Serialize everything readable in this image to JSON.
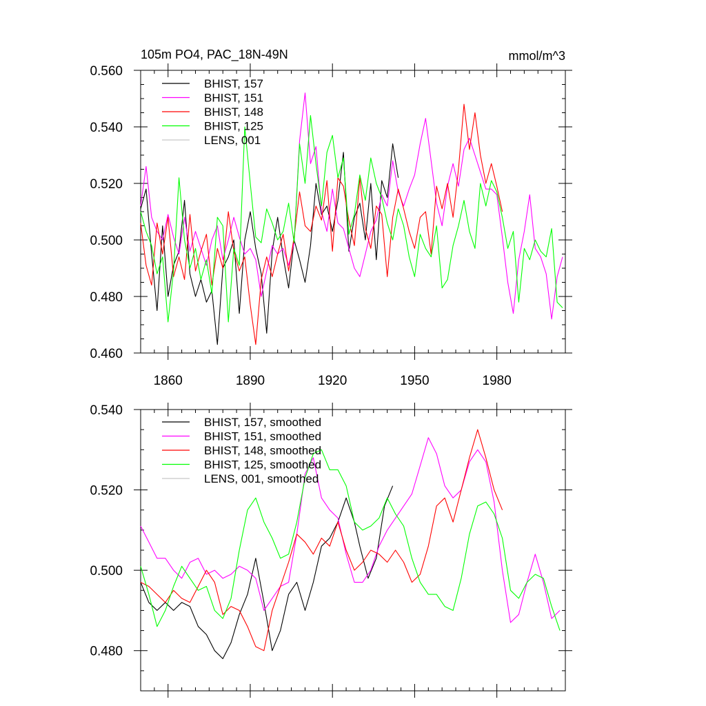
{
  "figure": {
    "title_left": "105m PO4, PAC_18N-49N",
    "title_right": "mmol/m^3"
  },
  "colors": {
    "BHIST_157": "#000000",
    "BHIST_151": "#ff00ff",
    "BHIST_148": "#ff0000",
    "BHIST_125": "#00ff00",
    "LENS_001": "#c8c8c8"
  },
  "chart_data": [
    {
      "type": "line",
      "title": "105m PO4, PAC_18N-49N",
      "units": "mmol/m^3",
      "xlim": [
        1850,
        2005
      ],
      "ylim": [
        0.46,
        0.56
      ],
      "x_ticks": [
        1860,
        1890,
        1920,
        1950,
        1980
      ],
      "x_tick_labels": [
        "1860",
        "1890",
        "1920",
        "1950",
        "1980"
      ],
      "y_ticks": [
        0.46,
        0.48,
        0.5,
        0.52,
        0.54,
        0.56
      ],
      "y_tick_labels": [
        "0.460",
        "0.480",
        "0.500",
        "0.520",
        "0.540",
        "0.560"
      ],
      "legend": [
        "BHIST, 157",
        "BHIST, 151",
        "BHIST, 148",
        "BHIST, 125",
        "LENS, 001"
      ],
      "series": [
        {
          "name": "BHIST, 157",
          "color": "#000000",
          "x": [
            1850,
            1852,
            1854,
            1856,
            1858,
            1860,
            1862,
            1864,
            1866,
            1868,
            1870,
            1872,
            1874,
            1876,
            1878,
            1880,
            1882,
            1884,
            1886,
            1888,
            1890,
            1892,
            1894,
            1896,
            1898,
            1900,
            1902,
            1904,
            1906,
            1908,
            1910,
            1912,
            1914,
            1916,
            1918,
            1920,
            1922,
            1924,
            1926,
            1928,
            1930,
            1932,
            1934,
            1936,
            1938,
            1940,
            1942,
            1944
          ],
          "y": [
            0.511,
            0.518,
            0.495,
            0.475,
            0.505,
            0.48,
            0.491,
            0.496,
            0.514,
            0.488,
            0.48,
            0.486,
            0.478,
            0.482,
            0.463,
            0.49,
            0.494,
            0.5,
            0.474,
            0.5,
            0.51,
            0.497,
            0.488,
            0.467,
            0.496,
            0.508,
            0.494,
            0.483,
            0.5,
            0.493,
            0.485,
            0.498,
            0.52,
            0.509,
            0.512,
            0.503,
            0.514,
            0.531,
            0.496,
            0.508,
            0.513,
            0.5,
            0.52,
            0.493,
            0.521,
            0.515,
            0.534,
            0.522
          ]
        },
        {
          "name": "BHIST, 151",
          "color": "#ff00ff",
          "x": [
            1850,
            1852,
            1854,
            1856,
            1858,
            1860,
            1862,
            1864,
            1866,
            1868,
            1870,
            1872,
            1874,
            1876,
            1878,
            1880,
            1882,
            1884,
            1886,
            1888,
            1890,
            1892,
            1894,
            1896,
            1898,
            1900,
            1902,
            1904,
            1906,
            1908,
            1910,
            1912,
            1914,
            1916,
            1918,
            1920,
            1922,
            1924,
            1926,
            1928,
            1930,
            1932,
            1934,
            1936,
            1938,
            1940,
            1942,
            1944,
            1946,
            1948,
            1950,
            1952,
            1954,
            1956,
            1958,
            1960,
            1962,
            1964,
            1966,
            1968,
            1970,
            1972,
            1974,
            1976,
            1978,
            1980,
            1982,
            1984,
            1986,
            1988,
            1990,
            1992,
            1994,
            1996,
            1998,
            2000,
            2002,
            2004
          ],
          "y": [
            0.512,
            0.526,
            0.508,
            0.503,
            0.5,
            0.509,
            0.501,
            0.495,
            0.508,
            0.496,
            0.503,
            0.497,
            0.491,
            0.5,
            0.505,
            0.493,
            0.5,
            0.508,
            0.501,
            0.495,
            0.497,
            0.493,
            0.48,
            0.489,
            0.498,
            0.495,
            0.497,
            0.491,
            0.499,
            0.535,
            0.552,
            0.527,
            0.533,
            0.51,
            0.503,
            0.518,
            0.506,
            0.504,
            0.497,
            0.49,
            0.487,
            0.495,
            0.503,
            0.507,
            0.516,
            0.512,
            0.528,
            0.517,
            0.512,
            0.518,
            0.523,
            0.534,
            0.543,
            0.528,
            0.513,
            0.505,
            0.519,
            0.527,
            0.519,
            0.532,
            0.536,
            0.53,
            0.524,
            0.518,
            0.518,
            0.516,
            0.501,
            0.485,
            0.474,
            0.493,
            0.503,
            0.516,
            0.497,
            0.494,
            0.488,
            0.472,
            0.487,
            0.494
          ]
        },
        {
          "name": "BHIST, 148",
          "color": "#ff0000",
          "x": [
            1850,
            1852,
            1854,
            1856,
            1858,
            1860,
            1862,
            1864,
            1866,
            1868,
            1870,
            1872,
            1874,
            1876,
            1878,
            1880,
            1882,
            1884,
            1886,
            1888,
            1890,
            1892,
            1894,
            1896,
            1898,
            1900,
            1902,
            1904,
            1906,
            1908,
            1910,
            1912,
            1914,
            1916,
            1918,
            1920,
            1922,
            1924,
            1926,
            1928,
            1930,
            1932,
            1934,
            1936,
            1938,
            1940,
            1942,
            1944,
            1946,
            1948,
            1950,
            1952,
            1954,
            1956,
            1958,
            1960,
            1962,
            1964,
            1966,
            1968,
            1970,
            1972,
            1974,
            1976,
            1978,
            1980,
            1982
          ],
          "y": [
            0.506,
            0.491,
            0.484,
            0.506,
            0.495,
            0.508,
            0.487,
            0.494,
            0.486,
            0.509,
            0.489,
            0.496,
            0.502,
            0.484,
            0.497,
            0.49,
            0.51,
            0.496,
            0.489,
            0.494,
            0.477,
            0.463,
            0.486,
            0.494,
            0.487,
            0.495,
            0.502,
            0.489,
            0.501,
            0.517,
            0.505,
            0.503,
            0.512,
            0.507,
            0.521,
            0.496,
            0.522,
            0.519,
            0.507,
            0.498,
            0.522,
            0.504,
            0.497,
            0.512,
            0.509,
            0.487,
            0.508,
            0.518,
            0.511,
            0.503,
            0.497,
            0.508,
            0.51,
            0.495,
            0.519,
            0.511,
            0.52,
            0.508,
            0.525,
            0.548,
            0.532,
            0.545,
            0.53,
            0.52,
            0.527,
            0.519,
            0.51
          ]
        },
        {
          "name": "BHIST, 125",
          "color": "#00ff00",
          "x": [
            1850,
            1852,
            1854,
            1856,
            1858,
            1860,
            1862,
            1864,
            1866,
            1868,
            1870,
            1872,
            1874,
            1876,
            1878,
            1880,
            1882,
            1884,
            1886,
            1888,
            1890,
            1892,
            1894,
            1896,
            1898,
            1900,
            1902,
            1904,
            1906,
            1908,
            1910,
            1912,
            1914,
            1916,
            1918,
            1920,
            1922,
            1924,
            1926,
            1928,
            1930,
            1932,
            1934,
            1936,
            1938,
            1940,
            1942,
            1944,
            1946,
            1948,
            1950,
            1952,
            1954,
            1956,
            1958,
            1960,
            1962,
            1964,
            1966,
            1968,
            1970,
            1972,
            1974,
            1976,
            1978,
            1980,
            1982,
            1984,
            1986,
            1988,
            1990,
            1992,
            1994,
            1996,
            1998,
            2000,
            2002,
            2004
          ],
          "y": [
            0.51,
            0.503,
            0.498,
            0.488,
            0.494,
            0.471,
            0.489,
            0.522,
            0.5,
            0.49,
            0.497,
            0.486,
            0.493,
            0.481,
            0.508,
            0.505,
            0.471,
            0.497,
            0.491,
            0.54,
            0.52,
            0.501,
            0.499,
            0.511,
            0.506,
            0.5,
            0.503,
            0.513,
            0.499,
            0.534,
            0.52,
            0.544,
            0.527,
            0.512,
            0.531,
            0.537,
            0.522,
            0.529,
            0.502,
            0.509,
            0.523,
            0.514,
            0.529,
            0.52,
            0.515,
            0.506,
            0.5,
            0.511,
            0.505,
            0.494,
            0.487,
            0.502,
            0.497,
            0.494,
            0.505,
            0.483,
            0.486,
            0.498,
            0.505,
            0.514,
            0.503,
            0.497,
            0.52,
            0.512,
            0.521,
            0.517,
            0.508,
            0.497,
            0.503,
            0.478,
            0.497,
            0.493,
            0.5,
            0.496,
            0.494,
            0.504,
            0.478,
            0.476
          ]
        }
      ]
    },
    {
      "type": "line",
      "title": "",
      "xlim": [
        1850,
        2005
      ],
      "ylim": [
        0.47,
        0.54
      ],
      "x_ticks": [
        1860,
        1890,
        1920,
        1950,
        1980
      ],
      "x_tick_labels": [],
      "y_ticks": [
        0.48,
        0.5,
        0.52,
        0.54
      ],
      "y_tick_labels": [
        "0.480",
        "0.500",
        "0.520",
        "0.540"
      ],
      "legend": [
        "BHIST, 157, smoothed",
        "BHIST, 151, smoothed",
        "BHIST, 148, smoothed",
        "BHIST, 125, smoothed",
        "LENS, 001, smoothed"
      ],
      "series": [
        {
          "name": "BHIST, 157, smoothed",
          "color": "#000000",
          "x": [
            1850,
            1853,
            1856,
            1859,
            1862,
            1865,
            1868,
            1871,
            1874,
            1877,
            1880,
            1883,
            1886,
            1889,
            1892,
            1895,
            1898,
            1901,
            1904,
            1907,
            1910,
            1913,
            1916,
            1919,
            1922,
            1925,
            1928,
            1930,
            1933,
            1936,
            1939,
            1942
          ],
          "y": [
            0.497,
            0.492,
            0.49,
            0.492,
            0.49,
            0.492,
            0.491,
            0.486,
            0.484,
            0.48,
            0.478,
            0.482,
            0.489,
            0.494,
            0.503,
            0.492,
            0.48,
            0.485,
            0.494,
            0.497,
            0.49,
            0.497,
            0.506,
            0.508,
            0.512,
            0.518,
            0.512,
            0.506,
            0.498,
            0.503,
            0.516,
            0.521
          ]
        },
        {
          "name": "BHIST, 151, smoothed",
          "color": "#ff00ff",
          "x": [
            1850,
            1853,
            1856,
            1859,
            1862,
            1865,
            1868,
            1871,
            1874,
            1877,
            1880,
            1883,
            1886,
            1889,
            1892,
            1895,
            1898,
            1901,
            1904,
            1907,
            1910,
            1913,
            1916,
            1919,
            1922,
            1925,
            1928,
            1931,
            1934,
            1937,
            1940,
            1943,
            1946,
            1949,
            1952,
            1955,
            1958,
            1961,
            1964,
            1967,
            1970,
            1973,
            1976,
            1979,
            1982,
            1985,
            1988,
            1991,
            1994,
            1997,
            2000,
            2003
          ],
          "y": [
            0.511,
            0.507,
            0.503,
            0.503,
            0.5,
            0.498,
            0.502,
            0.503,
            0.499,
            0.5,
            0.498,
            0.499,
            0.501,
            0.5,
            0.498,
            0.49,
            0.493,
            0.496,
            0.497,
            0.509,
            0.524,
            0.528,
            0.518,
            0.515,
            0.513,
            0.504,
            0.497,
            0.497,
            0.5,
            0.506,
            0.51,
            0.513,
            0.516,
            0.519,
            0.526,
            0.533,
            0.529,
            0.521,
            0.518,
            0.52,
            0.527,
            0.53,
            0.527,
            0.517,
            0.5,
            0.487,
            0.489,
            0.497,
            0.504,
            0.497,
            0.488,
            0.49
          ]
        },
        {
          "name": "BHIST, 148, smoothed",
          "color": "#ff0000",
          "x": [
            1850,
            1853,
            1856,
            1859,
            1862,
            1865,
            1868,
            1871,
            1874,
            1877,
            1880,
            1883,
            1886,
            1889,
            1892,
            1895,
            1898,
            1901,
            1904,
            1907,
            1910,
            1913,
            1916,
            1919,
            1922,
            1925,
            1928,
            1931,
            1934,
            1937,
            1940,
            1943,
            1946,
            1949,
            1952,
            1955,
            1958,
            1961,
            1964,
            1967,
            1970,
            1973,
            1976,
            1979,
            1982
          ],
          "y": [
            0.497,
            0.496,
            0.494,
            0.492,
            0.495,
            0.493,
            0.492,
            0.496,
            0.5,
            0.497,
            0.489,
            0.491,
            0.49,
            0.486,
            0.481,
            0.48,
            0.49,
            0.496,
            0.502,
            0.509,
            0.507,
            0.504,
            0.508,
            0.506,
            0.512,
            0.505,
            0.5,
            0.502,
            0.505,
            0.504,
            0.502,
            0.505,
            0.502,
            0.497,
            0.499,
            0.506,
            0.516,
            0.518,
            0.512,
            0.52,
            0.528,
            0.535,
            0.528,
            0.52,
            0.515
          ]
        },
        {
          "name": "BHIST, 125, smoothed",
          "color": "#00ff00",
          "x": [
            1850,
            1853,
            1856,
            1859,
            1862,
            1865,
            1868,
            1871,
            1874,
            1877,
            1880,
            1883,
            1886,
            1889,
            1892,
            1895,
            1898,
            1901,
            1904,
            1907,
            1910,
            1913,
            1916,
            1919,
            1922,
            1925,
            1928,
            1931,
            1934,
            1937,
            1940,
            1943,
            1946,
            1949,
            1952,
            1955,
            1958,
            1961,
            1964,
            1967,
            1970,
            1973,
            1976,
            1979,
            1982,
            1985,
            1988,
            1991,
            1994,
            1997,
            2000,
            2003
          ],
          "y": [
            0.501,
            0.494,
            0.486,
            0.49,
            0.496,
            0.501,
            0.498,
            0.495,
            0.496,
            0.49,
            0.488,
            0.493,
            0.505,
            0.515,
            0.518,
            0.512,
            0.508,
            0.503,
            0.504,
            0.512,
            0.523,
            0.529,
            0.53,
            0.525,
            0.525,
            0.521,
            0.512,
            0.51,
            0.511,
            0.513,
            0.518,
            0.514,
            0.511,
            0.503,
            0.497,
            0.494,
            0.494,
            0.491,
            0.49,
            0.498,
            0.509,
            0.516,
            0.517,
            0.514,
            0.508,
            0.495,
            0.493,
            0.497,
            0.499,
            0.498,
            0.491,
            0.485
          ]
        },
        {
          "name": "LENS, 001, smoothed",
          "color": "#c8c8c8",
          "x": [],
          "y": []
        }
      ]
    }
  ]
}
